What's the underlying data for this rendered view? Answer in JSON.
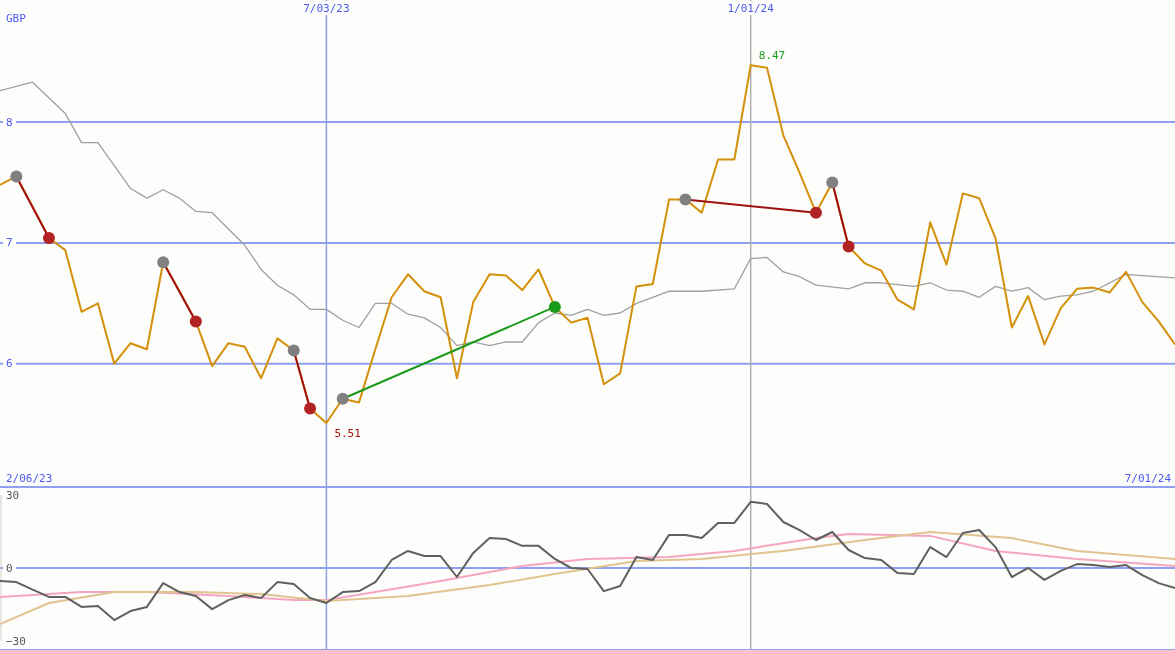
{
  "chart_data": [
    {
      "type": "line",
      "ylabel": "GBP",
      "x": [
        "2023-02-13",
        "2023-02-20",
        "2023-02-27",
        "2023-03-06",
        "2023-03-13",
        "2023-03-20",
        "2023-03-27",
        "2023-04-03",
        "2023-04-10",
        "2023-04-17",
        "2023-04-24",
        "2023-05-01",
        "2023-05-08",
        "2023-05-15",
        "2023-05-22",
        "2023-05-29",
        "2023-06-05",
        "2023-06-12",
        "2023-06-19",
        "2023-06-26",
        "2023-07-03",
        "2023-07-10",
        "2023-07-17",
        "2023-07-24",
        "2023-07-31",
        "2023-08-07",
        "2023-08-14",
        "2023-08-21",
        "2023-08-28",
        "2023-09-04",
        "2023-09-11",
        "2023-09-18",
        "2023-09-25",
        "2023-10-02",
        "2023-10-09",
        "2023-10-16",
        "2023-10-23",
        "2023-10-30",
        "2023-11-06",
        "2023-11-13",
        "2023-11-20",
        "2023-11-27",
        "2023-12-04",
        "2023-12-11",
        "2023-12-18",
        "2023-12-25",
        "2024-01-01",
        "2024-01-08",
        "2024-01-15",
        "2024-01-22",
        "2024-01-29",
        "2024-02-05",
        "2024-02-12",
        "2024-02-19",
        "2024-02-26",
        "2024-03-04",
        "2024-03-11",
        "2024-03-18",
        "2024-03-25",
        "2024-04-01",
        "2024-04-08",
        "2024-04-15",
        "2024-04-22",
        "2024-04-29",
        "2024-05-06",
        "2024-05-13",
        "2024-05-20",
        "2024-05-27",
        "2024-06-03",
        "2024-06-10",
        "2024-06-17",
        "2024-06-24",
        "2024-07-01"
      ],
      "series": [
        {
          "color": "#a0a0a0",
          "x": [
            "2023-02-13",
            "2023-02-27",
            "2023-03-13",
            "2023-03-20",
            "2023-03-27",
            "2023-04-03",
            "2023-04-10",
            "2023-04-17",
            "2023-04-24",
            "2023-05-01",
            "2023-05-08",
            "2023-05-15",
            "2023-05-29",
            "2023-06-05",
            "2023-06-12",
            "2023-06-19",
            "2023-06-26",
            "2023-07-03",
            "2023-07-10",
            "2023-07-17",
            "2023-07-24",
            "2023-07-31",
            "2023-08-07",
            "2023-08-14",
            "2023-08-21",
            "2023-08-28",
            "2023-09-04",
            "2023-09-11",
            "2023-09-18",
            "2023-09-25",
            "2023-10-02",
            "2023-10-09",
            "2023-10-16",
            "2023-10-23",
            "2023-10-30",
            "2023-11-06",
            "2023-11-13",
            "2023-11-20",
            "2023-11-27",
            "2023-12-04",
            "2023-12-11",
            "2023-12-25",
            "2024-01-01",
            "2024-01-08",
            "2024-01-15",
            "2024-01-22",
            "2024-01-29",
            "2024-02-12",
            "2024-02-19",
            "2024-02-26",
            "2024-03-11",
            "2024-03-18",
            "2024-03-25",
            "2024-04-01",
            "2024-04-08",
            "2024-04-15",
            "2024-04-22",
            "2024-04-29",
            "2024-05-06",
            "2024-05-13",
            "2024-05-20",
            "2024-05-27",
            "2024-06-10",
            "2024-06-17",
            "2024-07-01"
          ],
          "values": [
            8.26,
            8.33,
            8.07,
            7.83,
            7.83,
            7.64,
            7.45,
            7.37,
            7.44,
            7.37,
            7.26,
            7.25,
            6.98,
            6.78,
            6.65,
            6.57,
            6.45,
            6.45,
            6.36,
            6.3,
            6.5,
            6.5,
            6.41,
            6.38,
            6.3,
            6.15,
            6.18,
            6.15,
            6.18,
            6.18,
            6.34,
            6.42,
            6.4,
            6.45,
            6.4,
            6.42,
            6.5,
            6.55,
            6.6,
            6.6,
            6.6,
            6.62,
            6.87,
            6.88,
            6.76,
            6.72,
            6.65,
            6.62,
            6.67,
            6.67,
            6.64,
            6.67,
            6.61,
            6.6,
            6.55,
            6.64,
            6.6,
            6.63,
            6.53,
            6.56,
            6.57,
            6.6,
            6.74,
            6.73,
            6.71
          ]
        },
        {
          "color": "#d4900a",
          "values": [
            7.48,
            7.55,
            7.3,
            7.04,
            6.94,
            6.43,
            6.5,
            6.0,
            6.17,
            6.12,
            6.84,
            6.6,
            6.35,
            5.98,
            6.17,
            6.14,
            5.88,
            6.21,
            6.11,
            5.63,
            5.51,
            5.71,
            5.68,
            6.12,
            6.55,
            6.74,
            6.6,
            6.55,
            5.88,
            6.51,
            6.74,
            6.73,
            6.61,
            6.78,
            6.47,
            6.34,
            6.38,
            5.83,
            5.92,
            6.64,
            6.66,
            7.36,
            7.36,
            7.25,
            7.69,
            7.69,
            8.47,
            8.45,
            7.89,
            7.58,
            7.25,
            7.5,
            6.97,
            6.83,
            6.77,
            6.53,
            6.45,
            7.17,
            6.82,
            7.41,
            7.37,
            7.04,
            6.3,
            6.56,
            6.16,
            6.46,
            6.62,
            6.63,
            6.59,
            6.76,
            6.51,
            6.35,
            6.16
          ]
        },
        {
          "color": "#a01010",
          "x": [
            "2023-02-20",
            "2023-03-06"
          ],
          "values": [
            7.55,
            7.04
          ]
        },
        {
          "color": "#a01010",
          "x": [
            "2023-04-24",
            "2023-05-08"
          ],
          "values": [
            6.84,
            6.35
          ]
        },
        {
          "color": "#a01010",
          "x": [
            "2023-06-19",
            "2023-06-26"
          ],
          "values": [
            6.11,
            5.63
          ]
        },
        {
          "color": "#1a9a1a",
          "x": [
            "2023-07-10",
            "2023-10-09"
          ],
          "values": [
            5.71,
            6.47
          ]
        },
        {
          "color": "#a01010",
          "x": [
            "2023-12-04",
            "2024-01-29"
          ],
          "values": [
            7.36,
            7.25
          ]
        },
        {
          "color": "#a01010",
          "x": [
            "2024-02-05",
            "2024-02-12"
          ],
          "values": [
            7.5,
            6.97
          ]
        },
        {
          "type": "scatter",
          "color": "#808080",
          "x": [
            "2023-02-20",
            "2023-04-24",
            "2023-06-19",
            "2023-07-10",
            "2023-12-04",
            "2024-02-05"
          ],
          "values": [
            7.55,
            6.84,
            6.11,
            5.71,
            7.36,
            7.5
          ]
        },
        {
          "type": "scatter",
          "color": "#b22222",
          "x": [
            "2023-03-06",
            "2023-05-08",
            "2023-06-26",
            "2024-01-29",
            "2024-02-12"
          ],
          "values": [
            7.04,
            6.35,
            5.63,
            7.25,
            6.97
          ]
        },
        {
          "type": "scatter",
          "color": "#1a9a1a",
          "x": [
            "2023-10-09"
          ],
          "values": [
            6.47
          ]
        }
      ],
      "xlim": [
        "2023-02-13",
        "2024-07-01"
      ],
      "xticks": [
        {
          "value": "2023-07-03",
          "label": "7/03/23"
        },
        {
          "value": "2024-01-01",
          "label": "1/01/24"
        }
      ],
      "ylim": [
        4.98,
        9.01
      ],
      "yticks": [
        6,
        7,
        8
      ],
      "grid": "y",
      "ref_lines": [
        {
          "axis": "x",
          "value": "2023-07-03",
          "color": "#8fa0f0"
        },
        {
          "axis": "x",
          "value": "2024-01-01",
          "color": "#b0b0b0"
        }
      ],
      "annotations": [
        {
          "text": "8.47",
          "x": "2024-01-01",
          "y": 8.47
        },
        {
          "text": "5.51",
          "x": "2023-07-03",
          "y": 5.51
        },
        "2/06/23",
        "7/01/24"
      ]
    },
    {
      "type": "line",
      "x": [
        "2023-02-13",
        "2023-02-20",
        "2023-02-27",
        "2023-03-06",
        "2023-03-13",
        "2023-03-20",
        "2023-03-27",
        "2023-04-03",
        "2023-04-10",
        "2023-04-17",
        "2023-04-24",
        "2023-05-01",
        "2023-05-08",
        "2023-05-15",
        "2023-05-22",
        "2023-05-29",
        "2023-06-05",
        "2023-06-12",
        "2023-06-19",
        "2023-06-26",
        "2023-07-03",
        "2023-07-10",
        "2023-07-17",
        "2023-07-24",
        "2023-07-31",
        "2023-08-07",
        "2023-08-14",
        "2023-08-21",
        "2023-08-28",
        "2023-09-04",
        "2023-09-11",
        "2023-09-18",
        "2023-09-25",
        "2023-10-02",
        "2023-10-09",
        "2023-10-16",
        "2023-10-23",
        "2023-10-30",
        "2023-11-06",
        "2023-11-13",
        "2023-11-20",
        "2023-11-27",
        "2023-12-04",
        "2023-12-11",
        "2023-12-18",
        "2023-12-25",
        "2024-01-01",
        "2024-01-08",
        "2024-01-15",
        "2024-01-22",
        "2024-01-29",
        "2024-02-05",
        "2024-02-12",
        "2024-02-19",
        "2024-02-26",
        "2024-03-04",
        "2024-03-11",
        "2024-03-18",
        "2024-03-25",
        "2024-04-01",
        "2024-04-08",
        "2024-04-15",
        "2024-04-22",
        "2024-04-29",
        "2024-05-06",
        "2024-05-13",
        "2024-05-20",
        "2024-05-27",
        "2024-06-03",
        "2024-06-10",
        "2024-06-17",
        "2024-06-24",
        "2024-07-01"
      ],
      "series": [
        {
          "color": "#f4a6c0",
          "x": [
            "2023-02-13",
            "2023-03-20",
            "2023-04-17",
            "2023-05-22",
            "2023-06-19",
            "2023-07-03",
            "2023-07-24",
            "2023-08-21",
            "2023-09-25",
            "2023-10-23",
            "2023-11-27",
            "2023-12-25",
            "2024-01-29",
            "2024-02-12",
            "2024-03-18",
            "2024-04-15",
            "2024-05-20",
            "2024-07-01"
          ],
          "values": [
            -11.9,
            -9.9,
            -9.9,
            -11.5,
            -13.2,
            -13.2,
            -9.9,
            -5.3,
            0.8,
            3.7,
            4.5,
            7.0,
            12.3,
            14.0,
            13.2,
            7.0,
            3.7,
            0.8
          ]
        },
        {
          "color": "#e0c490",
          "x": [
            "2023-02-13",
            "2023-03-06",
            "2023-04-03",
            "2023-05-08",
            "2023-06-05",
            "2023-07-03",
            "2023-08-07",
            "2023-09-11",
            "2023-10-09",
            "2023-11-13",
            "2023-12-11",
            "2024-01-15",
            "2024-02-19",
            "2024-03-18",
            "2024-04-22",
            "2024-05-20",
            "2024-07-01"
          ],
          "values": [
            -23.0,
            -14.4,
            -9.9,
            -9.9,
            -10.7,
            -13.6,
            -11.5,
            -7.0,
            -2.5,
            2.9,
            3.7,
            7.0,
            11.5,
            14.8,
            12.3,
            7.0,
            3.7
          ]
        },
        {
          "color": "#606060",
          "values": [
            -5.3,
            -5.8,
            -8.9,
            -11.9,
            -11.9,
            -16.0,
            -15.6,
            -21.4,
            -17.7,
            -16.0,
            -6.2,
            -9.9,
            -11.5,
            -16.9,
            -13.2,
            -11.1,
            -12.3,
            -5.8,
            -6.6,
            -12.3,
            -14.4,
            -9.9,
            -9.5,
            -5.8,
            3.3,
            7.0,
            4.9,
            4.9,
            -3.7,
            6.2,
            12.3,
            11.9,
            9.1,
            9.1,
            3.7,
            0,
            -0.4,
            -9.5,
            -7.4,
            4.5,
            3.3,
            13.6,
            13.6,
            12.3,
            18.5,
            18.5,
            27.2,
            26.3,
            18.9,
            15.6,
            11.5,
            14.8,
            7.4,
            4.1,
            3.3,
            -2.1,
            -2.5,
            8.6,
            4.5,
            14.4,
            15.6,
            8.6,
            -3.7,
            0,
            -4.9,
            -1.2,
            1.6,
            1.2,
            0.4,
            1.2,
            -2.9,
            -6.2,
            -8.2
          ]
        }
      ],
      "xlim": [
        "2023-02-13",
        "2024-07-01"
      ],
      "ylim": [
        -30,
        30
      ],
      "yticks": [
        {
          "value": 30,
          "label": "30"
        },
        {
          "value": 0,
          "label": "0"
        },
        {
          "value": -30,
          "label": "−30"
        }
      ],
      "tick_labels": "y",
      "ref_lines": [
        {
          "axis": "y",
          "value": 0,
          "color": "#8fa0f0"
        },
        {
          "axis": "x",
          "value": "2023-07-03",
          "color": "#8fa0f0"
        },
        {
          "axis": "x",
          "value": "2024-01-01",
          "color": "#b0b0b0"
        }
      ]
    }
  ]
}
